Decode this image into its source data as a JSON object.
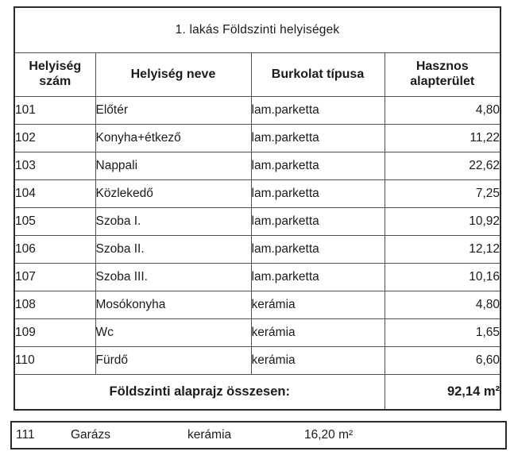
{
  "page": {
    "background_color": "#ffffff",
    "ink_color": "#1b1b1b",
    "border_color": "#2b2b2b"
  },
  "title": "1. lakás Földszinti helyiségek",
  "table": {
    "headers": {
      "szam": "Helyiség szám",
      "nev": "Helyiség neve",
      "burkolat": "Burkolat típusa",
      "terulet": "Hasznos alapterület"
    },
    "rows": [
      {
        "szam": "101",
        "nev": "Előtér",
        "burkolat": "lam.parketta",
        "terulet": "4,80"
      },
      {
        "szam": "102",
        "nev": "Konyha+étkező",
        "burkolat": "lam.parketta",
        "terulet": "11,22"
      },
      {
        "szam": "103",
        "nev": "Nappali",
        "burkolat": "lam.parketta",
        "terulet": "22,62"
      },
      {
        "szam": "104",
        "nev": "Közlekedő",
        "burkolat": "lam.parketta",
        "terulet": "7,25"
      },
      {
        "szam": "105",
        "nev": "Szoba I.",
        "burkolat": "lam.parketta",
        "terulet": "10,92"
      },
      {
        "szam": "106",
        "nev": "Szoba II.",
        "burkolat": "lam.parketta",
        "terulet": "12,12"
      },
      {
        "szam": "107",
        "nev": "Szoba III.",
        "burkolat": "lam.parketta",
        "terulet": "10,16"
      },
      {
        "szam": "108",
        "nev": "Mosókonyha",
        "burkolat": "kerámia",
        "terulet": "4,80"
      },
      {
        "szam": "109",
        "nev": "Wc",
        "burkolat": "kerámia",
        "terulet": "1,65"
      },
      {
        "szam": "110",
        "nev": "Fürdő",
        "burkolat": "kerámia",
        "terulet": "6,60"
      }
    ],
    "summary": {
      "label": "Földszinti alaprajz összesen:",
      "value": "92,14 m²"
    },
    "garage_row": {
      "szam": "111",
      "nev": "Garázs",
      "burkolat": "kerámia",
      "terulet": "16,20 m²"
    }
  }
}
